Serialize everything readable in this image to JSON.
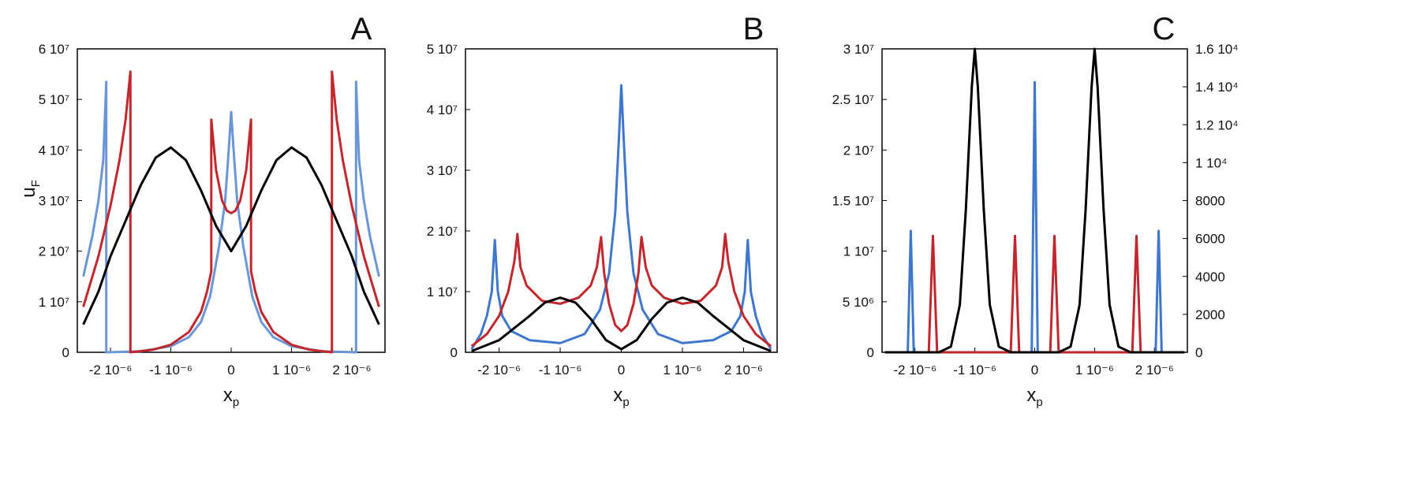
{
  "chart_data": [
    {
      "type": "line",
      "title": "A",
      "xlabel": {
        "main": "x",
        "sub": "p"
      },
      "ylabel": {
        "main": "u",
        "sub": "F"
      },
      "xlim": [
        -2.55e-06,
        2.55e-06
      ],
      "ylim": [
        0,
        60000000.0
      ],
      "xticks": [
        {
          "value": -2e-06,
          "label": "-2 10⁻⁶"
        },
        {
          "value": -1e-06,
          "label": "-1 10⁻⁶"
        },
        0,
        {
          "value": 1e-06,
          "label": "1 10⁻⁶"
        },
        {
          "value": 2e-06,
          "label": "2 10⁻⁶"
        }
      ],
      "yticks": [
        0,
        {
          "value": 10000000.0,
          "label": "1 10⁷"
        },
        {
          "value": 20000000.0,
          "label": "2 10⁷"
        },
        {
          "value": 30000000.0,
          "label": "3 10⁷"
        },
        {
          "value": 40000000.0,
          "label": "4 10⁷"
        },
        {
          "value": 50000000.0,
          "label": "5 10⁷"
        },
        {
          "value": 60000000.0,
          "label": "6 10⁷"
        }
      ],
      "series": [
        {
          "color": "#6a96d8",
          "x": [
            -2.45e-06,
            -2.3e-06,
            -2.2e-06,
            -2.12e-06,
            -2.07e-06,
            -2.07e-06,
            -1.5e-06,
            -1e-06,
            -7e-07,
            -5e-07,
            -3.5e-07,
            -2e-07,
            -1e-07,
            -4e-08,
            0,
            4e-08,
            1e-07,
            2e-07,
            3.5e-07,
            5e-07,
            7e-07,
            1e-06,
            1.5e-06,
            2.07e-06,
            2.07e-06,
            2.12e-06,
            2.2e-06,
            2.3e-06,
            2.45e-06
          ],
          "values": [
            15000000.0,
            23000000.0,
            30000000.0,
            38000000.0,
            53500000.0,
            0,
            200000.0,
            1200000.0,
            3000000.0,
            6000000.0,
            11000000.0,
            21000000.0,
            30000000.0,
            40000000.0,
            47500000.0,
            40000000.0,
            30000000.0,
            21000000.0,
            11000000.0,
            6000000.0,
            3000000.0,
            1200000.0,
            200000.0,
            0,
            53500000.0,
            38000000.0,
            30000000.0,
            23000000.0,
            15000000.0
          ]
        },
        {
          "color": "#c1272d",
          "x": [
            -2.45e-06,
            -2.2e-06,
            -2e-06,
            -1.85e-06,
            -1.75e-06,
            -1.67e-06,
            -1.67e-06,
            -1.3e-06,
            -1e-06,
            -7e-07,
            -5e-07,
            -4e-07,
            -3.3e-07,
            -3.3e-07,
            -2.5e-07,
            -1.5e-07,
            -7e-08,
            0,
            7e-08,
            1.5e-07,
            2.5e-07,
            3.3e-07,
            3.3e-07,
            4e-07,
            5e-07,
            7e-07,
            1e-06,
            1.3e-06,
            1.67e-06,
            1.67e-06,
            1.75e-06,
            1.85e-06,
            2e-06,
            2.2e-06,
            2.45e-06
          ],
          "values": [
            9000000.0,
            19000000.0,
            29000000.0,
            38000000.0,
            46000000.0,
            55500000.0,
            0,
            500000.0,
            1500000.0,
            4000000.0,
            8000000.0,
            12000000.0,
            16000000.0,
            46000000.0,
            36000000.0,
            30000000.0,
            28000000.0,
            27500000.0,
            28000000.0,
            30000000.0,
            36000000.0,
            46000000.0,
            16000000.0,
            12000000.0,
            8000000.0,
            4000000.0,
            1500000.0,
            500000.0,
            0,
            55500000.0,
            46000000.0,
            38000000.0,
            29000000.0,
            19000000.0,
            9000000.0
          ]
        },
        {
          "color": "#000000",
          "x": [
            -2.45e-06,
            -2.2e-06,
            -2e-06,
            -1.75e-06,
            -1.5e-06,
            -1.25e-06,
            -1e-06,
            -7.5e-07,
            -5e-07,
            -2.5e-07,
            0,
            2.5e-07,
            5e-07,
            7.5e-07,
            1e-06,
            1.25e-06,
            1.5e-06,
            1.75e-06,
            2e-06,
            2.2e-06,
            2.45e-06
          ],
          "values": [
            5500000.0,
            12000000.0,
            19000000.0,
            26000000.0,
            33000000.0,
            38500000.0,
            40500000.0,
            38000000.0,
            32000000.0,
            25000000.0,
            20000000.0,
            25000000.0,
            32000000.0,
            38000000.0,
            40500000.0,
            38500000.0,
            33000000.0,
            26000000.0,
            19000000.0,
            12000000.0,
            5500000.0
          ]
        }
      ]
    },
    {
      "type": "line",
      "title": "B",
      "xlabel": {
        "main": "x",
        "sub": "p"
      },
      "xlim": [
        -2.55e-06,
        2.55e-06
      ],
      "ylim": [
        0,
        50000000.0
      ],
      "xticks": [
        {
          "value": -2e-06,
          "label": "-2 10⁻⁶"
        },
        {
          "value": -1e-06,
          "label": "-1 10⁻⁶"
        },
        0,
        {
          "value": 1e-06,
          "label": "1 10⁻⁶"
        },
        {
          "value": 2e-06,
          "label": "2 10⁻⁶"
        }
      ],
      "yticks": [
        0,
        {
          "value": 10000000.0,
          "label": "1 10⁷"
        },
        {
          "value": 20000000.0,
          "label": "2 10⁷"
        },
        {
          "value": 30000000.0,
          "label": "3 10⁷"
        },
        {
          "value": 40000000.0,
          "label": "4 10⁷"
        },
        {
          "value": 50000000.0,
          "label": "5 10⁷"
        }
      ],
      "series": [
        {
          "color": "#3f77cc",
          "x": [
            -2.45e-06,
            -2.3e-06,
            -2.2e-06,
            -2.12e-06,
            -2.07e-06,
            -2.02e-06,
            -1.95e-06,
            -1.8e-06,
            -1.5e-06,
            -1e-06,
            -6e-07,
            -3.5e-07,
            -2e-07,
            -1e-07,
            -4e-08,
            0,
            4e-08,
            1e-07,
            2e-07,
            3.5e-07,
            6e-07,
            1e-06,
            1.5e-06,
            1.8e-06,
            1.95e-06,
            2.02e-06,
            2.07e-06,
            2.12e-06,
            2.2e-06,
            2.3e-06,
            2.45e-06
          ],
          "values": [
            500000.0,
            3000000.0,
            6000000.0,
            10000000.0,
            18500000.0,
            10000000.0,
            6000000.0,
            3500000.0,
            2000000.0,
            1500000.0,
            3000000.0,
            7000000.0,
            13000000.0,
            23000000.0,
            35000000.0,
            44000000.0,
            35000000.0,
            23000000.0,
            13000000.0,
            7000000.0,
            3000000.0,
            1500000.0,
            2000000.0,
            3500000.0,
            6000000.0,
            10000000.0,
            18500000.0,
            10000000.0,
            6000000.0,
            3000000.0,
            500000.0
          ]
        },
        {
          "color": "#c1272d",
          "x": [
            -2.45e-06,
            -2.2e-06,
            -2e-06,
            -1.85e-06,
            -1.75e-06,
            -1.7e-06,
            -1.65e-06,
            -1.55e-06,
            -1.3e-06,
            -1e-06,
            -7e-07,
            -5e-07,
            -4e-07,
            -3.3e-07,
            -2.8e-07,
            -2e-07,
            -1e-07,
            0,
            1e-07,
            2e-07,
            2.8e-07,
            3.3e-07,
            4e-07,
            5e-07,
            7e-07,
            1e-06,
            1.3e-06,
            1.55e-06,
            1.65e-06,
            1.7e-06,
            1.75e-06,
            1.85e-06,
            2e-06,
            2.2e-06,
            2.45e-06
          ],
          "values": [
            1000000.0,
            3000000.0,
            6000000.0,
            10000000.0,
            15000000.0,
            19500000.0,
            14000000.0,
            11000000.0,
            8500000.0,
            8000000.0,
            9000000.0,
            11000000.0,
            14000000.0,
            19000000.0,
            13000000.0,
            8000000.0,
            4500000.0,
            3500000.0,
            4500000.0,
            8000000.0,
            13000000.0,
            19000000.0,
            14000000.0,
            11000000.0,
            9000000.0,
            8000000.0,
            8500000.0,
            11000000.0,
            14000000.0,
            19500000.0,
            15000000.0,
            10000000.0,
            6000000.0,
            3000000.0,
            1000000.0
          ]
        },
        {
          "color": "#000000",
          "x": [
            -2.45e-06,
            -2e-06,
            -1.5e-06,
            -1.25e-06,
            -1e-06,
            -7.5e-07,
            -5e-07,
            -2.5e-07,
            0,
            2.5e-07,
            5e-07,
            7.5e-07,
            1e-06,
            1.25e-06,
            1.5e-06,
            2e-06,
            2.45e-06
          ],
          "values": [
            200000.0,
            2000000.0,
            6000000.0,
            8200000.0,
            9000000.0,
            8200000.0,
            5500000.0,
            2000000.0,
            500000.0,
            2000000.0,
            5500000.0,
            8200000.0,
            9000000.0,
            8200000.0,
            6000000.0,
            2000000.0,
            200000.0
          ]
        }
      ]
    },
    {
      "type": "line",
      "title": "C",
      "xlabel": {
        "main": "x",
        "sub": "p"
      },
      "xlim": [
        -2.55e-06,
        2.55e-06
      ],
      "ylim": [
        0,
        30000000.0
      ],
      "y2lim": [
        0,
        16000
      ],
      "xticks": [
        {
          "value": -2e-06,
          "label": "-2 10⁻⁶"
        },
        {
          "value": -1e-06,
          "label": "-1 10⁻⁶"
        },
        0,
        {
          "value": 1e-06,
          "label": "1 10⁻⁶"
        },
        {
          "value": 2e-06,
          "label": "2 10⁻⁶"
        }
      ],
      "yticks": [
        0,
        {
          "value": 5000000.0,
          "label": "5 10⁶"
        },
        {
          "value": 10000000.0,
          "label": "1 10⁷"
        },
        {
          "value": 15000000.0,
          "label": "1.5 10⁷"
        },
        {
          "value": 20000000.0,
          "label": "2 10⁷"
        },
        {
          "value": 25000000.0,
          "label": "2.5 10⁷"
        },
        {
          "value": 30000000.0,
          "label": "3 10⁷"
        }
      ],
      "y2ticks": [
        0,
        2000,
        4000,
        6000,
        8000,
        {
          "value": 10000,
          "label": "1 10⁴"
        },
        {
          "value": 12000,
          "label": "1.2 10⁴"
        },
        {
          "value": 14000,
          "label": "1.4 10⁴"
        },
        {
          "value": 16000,
          "label": "1.6 10⁴"
        }
      ],
      "series": [
        {
          "color": "#3f77cc",
          "x": [
            -2.5e-06,
            -2.12e-06,
            -2.07e-06,
            -2.02e-06,
            -5e-08,
            0,
            5e-08,
            2.02e-06,
            2.07e-06,
            2.12e-06,
            2.5e-06
          ],
          "values": [
            0,
            0,
            12000000.0,
            0,
            0,
            26700000.0,
            0,
            0,
            12000000.0,
            0,
            0
          ]
        },
        {
          "color": "#c1272d",
          "x": [
            -2.5e-06,
            -1.77e-06,
            -1.7e-06,
            -1.63e-06,
            -4e-07,
            -3.3e-07,
            -2.6e-07,
            2.6e-07,
            3.3e-07,
            4e-07,
            1.63e-06,
            1.7e-06,
            1.77e-06,
            2.5e-06
          ],
          "values": [
            0,
            0,
            11500000.0,
            0,
            0,
            11500000.0,
            0,
            0,
            11500000.0,
            0,
            0,
            11500000.0,
            0,
            0
          ]
        },
        {
          "color": "#000000",
          "axis": "y2",
          "x": [
            -2.5e-06,
            -1.6e-06,
            -1.4e-06,
            -1.25e-06,
            -1.15e-06,
            -1.05e-06,
            -1e-06,
            -9.5e-07,
            -8.5e-07,
            -7.5e-07,
            -6e-07,
            -4e-07,
            0,
            4e-07,
            6e-07,
            7.5e-07,
            8.5e-07,
            9.5e-07,
            1e-06,
            1.05e-06,
            1.15e-06,
            1.25e-06,
            1.4e-06,
            1.6e-06,
            2.5e-06
          ],
          "values": [
            0,
            0,
            300,
            2500,
            7500,
            14000,
            16000,
            14000,
            7500,
            2500,
            300,
            0,
            0,
            0,
            300,
            2500,
            7500,
            14000,
            16000,
            14000,
            7500,
            2500,
            300,
            0,
            0
          ]
        }
      ]
    }
  ]
}
